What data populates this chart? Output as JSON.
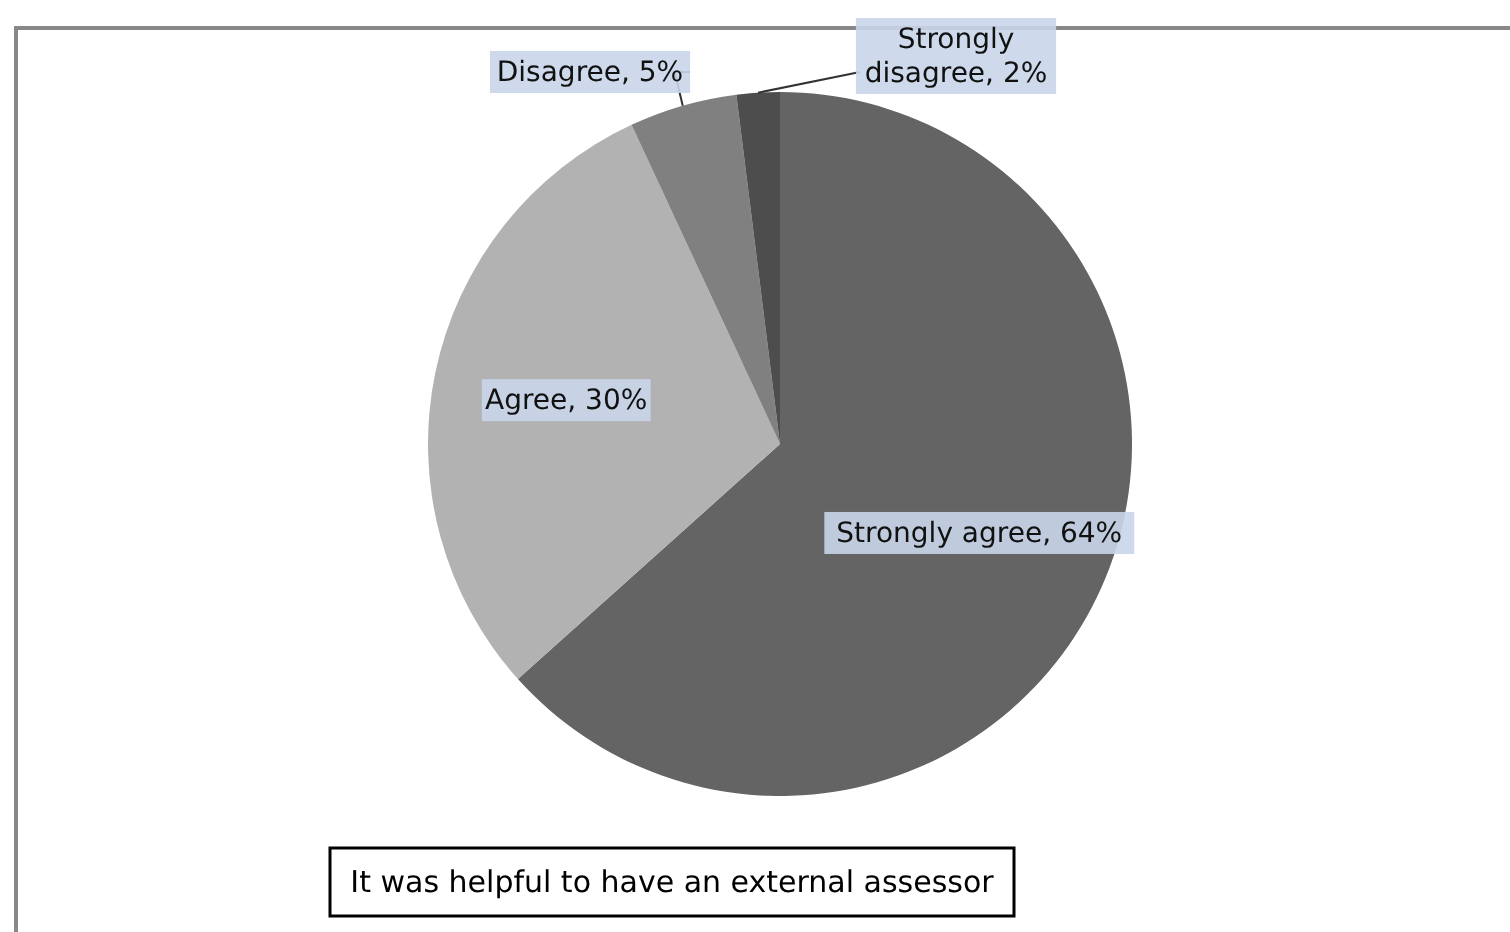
{
  "chart_data": {
    "type": "pie",
    "title": "It was helpful to have an external assessor",
    "categories": [
      "Strongly agree",
      "Agree",
      "Disagree",
      "Strongly disagree"
    ],
    "values": [
      64,
      30,
      5,
      2
    ],
    "value_labels": [
      "64%",
      "30%",
      "5%",
      "2%"
    ],
    "colors": [
      "#646464",
      "#b2b2b2",
      "#808080",
      "#4d4d4d"
    ]
  }
}
